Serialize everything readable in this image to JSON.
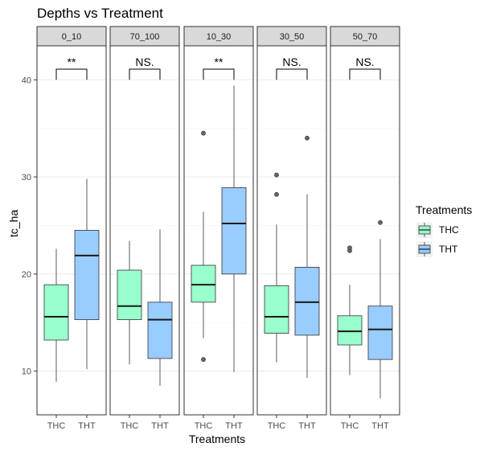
{
  "chart_data": {
    "type": "boxplot",
    "title": "Depths vs Treatment",
    "xlabel": "Treatments",
    "ylabel": "tc_ha",
    "ylim": [
      5.5,
      43.5
    ],
    "yticks": [
      10,
      20,
      30,
      40
    ],
    "grid": true,
    "legend": {
      "title": "Treatments",
      "position": "right",
      "entries": [
        {
          "label": "THC",
          "color": "#99FFCC"
        },
        {
          "label": "THT",
          "color": "#99CCFF"
        }
      ]
    },
    "categories": [
      "THC",
      "THT"
    ],
    "facets": [
      {
        "label": "0_10",
        "significance": "**",
        "boxes": [
          {
            "group": "THC",
            "lower_whisker": 8.9,
            "q1": 13.2,
            "median": 15.6,
            "q3": 18.9,
            "upper_whisker": 22.6,
            "outliers": []
          },
          {
            "group": "THT",
            "lower_whisker": 10.2,
            "q1": 15.3,
            "median": 21.9,
            "q3": 24.5,
            "upper_whisker": 29.8,
            "outliers": []
          }
        ]
      },
      {
        "label": "70_100",
        "significance": "NS.",
        "boxes": [
          {
            "group": "THC",
            "lower_whisker": 10.7,
            "q1": 15.3,
            "median": 16.7,
            "q3": 20.4,
            "upper_whisker": 23.4,
            "outliers": []
          },
          {
            "group": "THT",
            "lower_whisker": 8.5,
            "q1": 11.3,
            "median": 15.3,
            "q3": 17.1,
            "upper_whisker": 24.6,
            "outliers": []
          }
        ]
      },
      {
        "label": "10_30",
        "significance": "**",
        "boxes": [
          {
            "group": "THC",
            "lower_whisker": 13.4,
            "q1": 17.1,
            "median": 18.9,
            "q3": 20.9,
            "upper_whisker": 26.4,
            "outliers": [
              11.2,
              34.5
            ]
          },
          {
            "group": "THT",
            "lower_whisker": 9.9,
            "q1": 20.0,
            "median": 25.2,
            "q3": 28.9,
            "upper_whisker": 39.4,
            "outliers": []
          }
        ]
      },
      {
        "label": "30_50",
        "significance": "NS.",
        "boxes": [
          {
            "group": "THC",
            "lower_whisker": 10.9,
            "q1": 13.9,
            "median": 15.6,
            "q3": 18.8,
            "upper_whisker": 25.1,
            "outliers": [
              28.2,
              30.2
            ]
          },
          {
            "group": "THT",
            "lower_whisker": 9.3,
            "q1": 13.7,
            "median": 17.1,
            "q3": 20.7,
            "upper_whisker": 28.2,
            "outliers": [
              34.0
            ]
          }
        ]
      },
      {
        "label": "50_70",
        "significance": "NS.",
        "boxes": [
          {
            "group": "THC",
            "lower_whisker": 9.6,
            "q1": 12.7,
            "median": 14.1,
            "q3": 15.7,
            "upper_whisker": 18.9,
            "outliers": [
              22.4,
              22.7
            ]
          },
          {
            "group": "THT",
            "lower_whisker": 7.2,
            "q1": 11.2,
            "median": 14.3,
            "q3": 16.7,
            "upper_whisker": 23.6,
            "outliers": [
              25.3
            ]
          }
        ]
      }
    ]
  }
}
